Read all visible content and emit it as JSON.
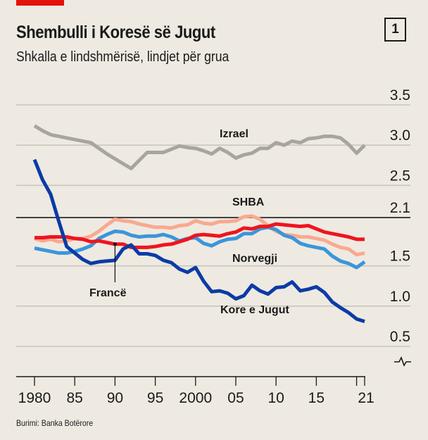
{
  "header": {
    "title": "Shembulli i Koresë së Jugut",
    "subtitle": "Shkalla e lindshmërisë, lindjet për grua",
    "badge": "1"
  },
  "footer": {
    "source": "Burimi: Banka Botërore"
  },
  "colors": {
    "brand_bar": "#E3120B",
    "israel": "#A8A69C",
    "korea": "#0B3BA6",
    "france": "#F0141E",
    "usa": "#F9A98F",
    "norway": "#3C95DA",
    "grid": "#C9C6BD",
    "replacement_line": "#1a1a1a"
  },
  "chart_data": {
    "type": "line",
    "title": "Shembulli i Koresë së Jugut",
    "subtitle": "Shkalla e lindshmërisë, lindjet për grua",
    "xlabel": "",
    "ylabel": "",
    "xlim": [
      1980,
      2021
    ],
    "ylim": [
      0.5,
      3.5
    ],
    "y_axis_break": true,
    "y_axis_side": "right",
    "grid": true,
    "yticks": [
      3.5,
      3.0,
      2.5,
      2.1,
      1.5,
      1.0,
      0.5
    ],
    "ytick_labels": [
      "3.5",
      "3.0",
      "2.5",
      "2.1",
      "1.5",
      "1.0",
      "0.5"
    ],
    "xticks": [
      1980,
      1985,
      1990,
      1995,
      2000,
      2005,
      2010,
      2015,
      2020,
      2021
    ],
    "xtick_labels": [
      "1980",
      "85",
      "90",
      "95",
      "2000",
      "05",
      "10",
      "15",
      "",
      "21"
    ],
    "reference_line": {
      "value": 2.1,
      "label": "2.1"
    },
    "x": [
      1980,
      1981,
      1982,
      1983,
      1984,
      1985,
      1986,
      1987,
      1988,
      1989,
      1990,
      1991,
      1992,
      1993,
      1994,
      1995,
      1996,
      1997,
      1998,
      1999,
      2000,
      2001,
      2002,
      2003,
      2004,
      2005,
      2006,
      2007,
      2008,
      2009,
      2010,
      2011,
      2012,
      2013,
      2014,
      2015,
      2016,
      2017,
      2018,
      2019,
      2020,
      2021
    ],
    "series": [
      {
        "name": "Izrael",
        "key": "israel",
        "values": [
          3.24,
          3.18,
          3.13,
          3.11,
          3.09,
          3.07,
          3.05,
          3.03,
          2.96,
          2.89,
          2.83,
          2.77,
          2.71,
          2.81,
          2.91,
          2.91,
          2.91,
          2.95,
          2.99,
          2.97,
          2.96,
          2.93,
          2.89,
          2.96,
          2.91,
          2.84,
          2.88,
          2.9,
          2.96,
          2.96,
          3.03,
          3.0,
          3.05,
          3.03,
          3.08,
          3.09,
          3.11,
          3.11,
          3.09,
          3.01,
          2.9,
          3.0
        ]
      },
      {
        "name": "SHBA",
        "key": "usa",
        "values": [
          1.84,
          1.81,
          1.83,
          1.8,
          1.81,
          1.84,
          1.84,
          1.87,
          1.93,
          2.01,
          2.08,
          2.06,
          2.05,
          2.02,
          2.0,
          1.98,
          1.98,
          1.97,
          2.0,
          2.01,
          2.06,
          2.03,
          2.02,
          2.05,
          2.05,
          2.06,
          2.11,
          2.12,
          2.08,
          2.0,
          1.93,
          1.89,
          1.88,
          1.86,
          1.86,
          1.84,
          1.82,
          1.77,
          1.73,
          1.71,
          1.64,
          1.66
        ]
      },
      {
        "name": "Francë",
        "key": "france",
        "values": [
          1.85,
          1.85,
          1.86,
          1.86,
          1.86,
          1.84,
          1.83,
          1.8,
          1.81,
          1.79,
          1.77,
          1.77,
          1.73,
          1.73,
          1.73,
          1.74,
          1.76,
          1.77,
          1.8,
          1.83,
          1.88,
          1.89,
          1.88,
          1.87,
          1.9,
          1.92,
          1.97,
          1.96,
          1.99,
          1.99,
          2.02,
          2.01,
          2.0,
          1.99,
          2.0,
          1.96,
          1.92,
          1.9,
          1.88,
          1.86,
          1.83,
          1.83
        ]
      },
      {
        "name": "Norvegji",
        "key": "norway",
        "values": [
          1.72,
          1.7,
          1.68,
          1.66,
          1.66,
          1.68,
          1.71,
          1.75,
          1.84,
          1.89,
          1.93,
          1.92,
          1.88,
          1.86,
          1.87,
          1.87,
          1.89,
          1.86,
          1.81,
          1.84,
          1.85,
          1.78,
          1.75,
          1.8,
          1.83,
          1.84,
          1.9,
          1.9,
          1.96,
          1.98,
          1.95,
          1.88,
          1.85,
          1.78,
          1.75,
          1.73,
          1.71,
          1.62,
          1.56,
          1.53,
          1.48,
          1.55
        ]
      },
      {
        "name": "Kore e Jugut",
        "key": "korea",
        "values": [
          2.82,
          2.57,
          2.39,
          2.06,
          1.74,
          1.66,
          1.58,
          1.53,
          1.55,
          1.56,
          1.57,
          1.71,
          1.76,
          1.65,
          1.65,
          1.63,
          1.57,
          1.54,
          1.46,
          1.42,
          1.48,
          1.31,
          1.18,
          1.19,
          1.16,
          1.09,
          1.13,
          1.26,
          1.19,
          1.15,
          1.23,
          1.24,
          1.3,
          1.19,
          1.21,
          1.24,
          1.17,
          1.05,
          0.98,
          0.92,
          0.84,
          0.81
        ]
      }
    ],
    "annotations": [
      {
        "text": "Izrael",
        "series": "israel"
      },
      {
        "text": "SHBA",
        "series": "usa"
      },
      {
        "text": "Norvegji",
        "series": "norway"
      },
      {
        "text": "Francë",
        "series": "france",
        "leader_line_year": 1990
      },
      {
        "text": "Kore e Jugut",
        "series": "korea"
      }
    ]
  }
}
